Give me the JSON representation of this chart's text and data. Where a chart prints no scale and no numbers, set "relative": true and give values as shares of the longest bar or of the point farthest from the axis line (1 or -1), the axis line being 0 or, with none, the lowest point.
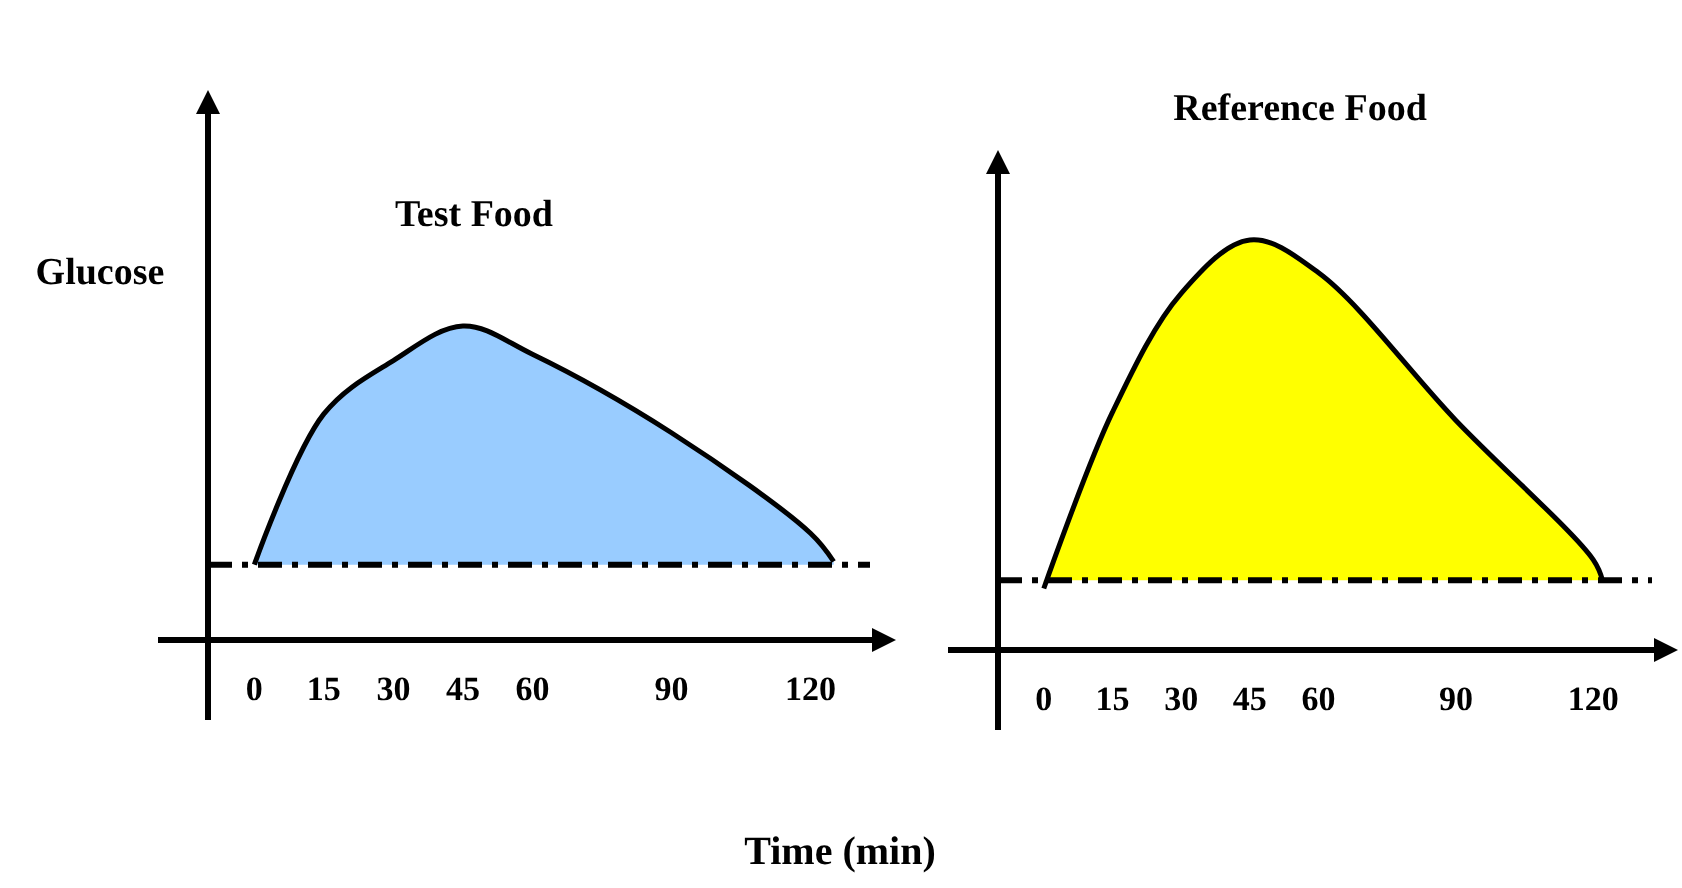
{
  "chart_data": [
    {
      "type": "area",
      "title": "Test Food",
      "ylabel": "Glucose",
      "xlabel": "Time (min)",
      "relative": true,
      "xlim": [
        -10,
        135
      ],
      "xticks": [
        0,
        15,
        30,
        45,
        60,
        90,
        120
      ],
      "series": [
        {
          "color": "#99ccff",
          "x": [
            0,
            15,
            30,
            45,
            60,
            90,
            120,
            125
          ],
          "values": [
            0.24,
            0.72,
            0.89,
            1.0,
            0.91,
            0.66,
            0.34,
            0.25
          ]
        }
      ],
      "ref_lines": [
        {
          "axis": "y",
          "value": 0.24
        }
      ]
    },
    {
      "type": "area",
      "title": "Reference Food",
      "relative": true,
      "xlim": [
        -10,
        135
      ],
      "xticks": [
        0,
        15,
        30,
        45,
        60,
        90,
        120
      ],
      "series": [
        {
          "color": "#ffff00",
          "x": [
            0,
            15,
            30,
            45,
            60,
            90,
            120,
            122
          ],
          "values": [
            0.15,
            0.58,
            0.87,
            1.0,
            0.92,
            0.56,
            0.22,
            0.17
          ]
        }
      ],
      "ref_lines": [
        {
          "axis": "y",
          "value": 0.17
        }
      ]
    }
  ]
}
